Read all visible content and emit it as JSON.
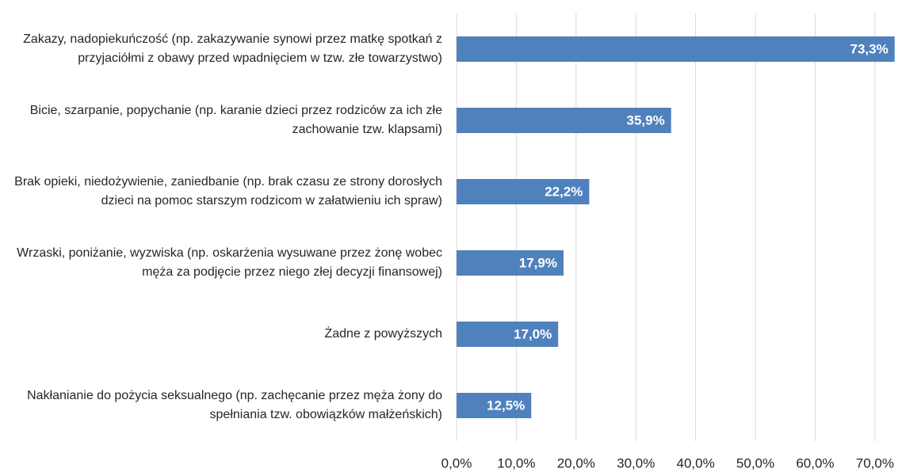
{
  "chart_data": {
    "type": "bar",
    "orientation": "horizontal",
    "categories": [
      "Zakazy, nadopiekuńczość (np. zakazywanie synowi przez matkę spotkań z przyjaciółmi z obawy przed wpadnięciem w tzw. złe towarzystwo)",
      "Bicie, szarpanie, popychanie (np. karanie dzieci przez rodziców za ich złe zachowanie tzw. klapsami)",
      "Brak opieki, niedożywienie, zaniedbanie (np. brak czasu ze strony dorosłych dzieci na pomoc starszym rodzicom w załatwieniu ich spraw)",
      "Wrzaski, poniżanie, wyzwiska (np. oskarżenia wysuwane przez żonę wobec męża za podjęcie przez niego złej decyzji finansowej)",
      "Żadne z powyższych",
      "Nakłanianie do pożycia seksualnego (np. zachęcanie przez męża żony do spełniania tzw. obowiązków małżeńskich)"
    ],
    "values": [
      73.3,
      35.9,
      22.2,
      17.9,
      17.0,
      12.5
    ],
    "value_labels": [
      "73,3%",
      "35,9%",
      "22,2%",
      "17,9%",
      "17,0%",
      "12,5%"
    ],
    "color": "#4f81bd",
    "xlim": [
      0,
      74
    ],
    "xticks": [
      {
        "value": 0,
        "label": "0,0%"
      },
      {
        "value": 10,
        "label": "10,0%"
      },
      {
        "value": 20,
        "label": "20,0%"
      },
      {
        "value": 30,
        "label": "30,0%"
      },
      {
        "value": 40,
        "label": "40,0%"
      },
      {
        "value": 50,
        "label": "50,0%"
      },
      {
        "value": 60,
        "label": "60,0%"
      },
      {
        "value": 70,
        "label": "70,0%"
      }
    ],
    "grid": true
  }
}
